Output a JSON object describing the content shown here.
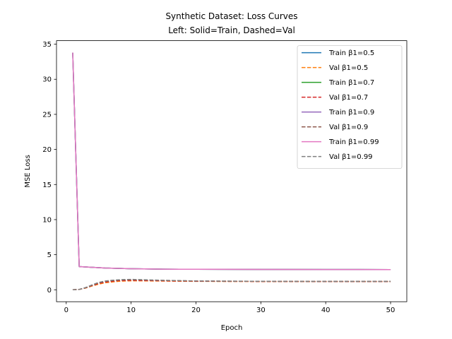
{
  "chart_data": {
    "type": "line",
    "title": "Synthetic Dataset: Loss Curves",
    "subtitle": "Left: Solid=Train, Dashed=Val",
    "xlabel": "Epoch",
    "ylabel": "MSE Loss",
    "xlim": [
      -1.5,
      52.5
    ],
    "ylim": [
      -1.7,
      35.5
    ],
    "xticks": [
      0,
      10,
      20,
      30,
      40,
      50
    ],
    "yticks": [
      0,
      5,
      10,
      15,
      20,
      25,
      30,
      35
    ],
    "grid": false,
    "legend_position": "top-right",
    "series": [
      {
        "name": "Train β1=0.5",
        "color": "#1f77b4",
        "style": "solid",
        "x": [
          1,
          2,
          3,
          4,
          5,
          6,
          7,
          8,
          9,
          10,
          12,
          15,
          20,
          30,
          40,
          50
        ],
        "y": [
          33.8,
          3.3,
          3.25,
          3.2,
          3.15,
          3.1,
          3.08,
          3.05,
          3.03,
          3.0,
          2.97,
          2.94,
          2.92,
          2.9,
          2.89,
          2.88
        ]
      },
      {
        "name": "Val β1=0.5",
        "color": "#ff7f0e",
        "style": "dashed",
        "x": [
          1,
          2,
          3,
          4,
          5,
          6,
          7,
          8,
          9,
          10,
          12,
          15,
          20,
          30,
          40,
          50
        ],
        "y": [
          0.0,
          0.05,
          0.25,
          0.55,
          0.8,
          1.0,
          1.1,
          1.2,
          1.25,
          1.28,
          1.27,
          1.24,
          1.2,
          1.18,
          1.18,
          1.18
        ]
      },
      {
        "name": "Train β1=0.7",
        "color": "#2ca02c",
        "style": "solid",
        "x": [
          1,
          2,
          3,
          4,
          5,
          6,
          7,
          8,
          9,
          10,
          12,
          15,
          20,
          30,
          40,
          50
        ],
        "y": [
          33.8,
          3.3,
          3.25,
          3.2,
          3.15,
          3.1,
          3.08,
          3.05,
          3.03,
          3.0,
          2.97,
          2.94,
          2.92,
          2.9,
          2.89,
          2.88
        ]
      },
      {
        "name": "Val β1=0.7",
        "color": "#d62728",
        "style": "dashed",
        "x": [
          1,
          2,
          3,
          4,
          5,
          6,
          7,
          8,
          9,
          10,
          12,
          15,
          20,
          30,
          40,
          50
        ],
        "y": [
          0.0,
          0.05,
          0.28,
          0.6,
          0.9,
          1.1,
          1.2,
          1.3,
          1.33,
          1.35,
          1.32,
          1.28,
          1.22,
          1.19,
          1.18,
          1.18
        ]
      },
      {
        "name": "Train β1=0.9",
        "color": "#9467bd",
        "style": "solid",
        "x": [
          1,
          2,
          3,
          4,
          5,
          6,
          7,
          8,
          9,
          10,
          12,
          15,
          20,
          30,
          40,
          50
        ],
        "y": [
          33.8,
          3.3,
          3.25,
          3.2,
          3.15,
          3.1,
          3.08,
          3.05,
          3.03,
          3.0,
          2.97,
          2.94,
          2.92,
          2.9,
          2.89,
          2.88
        ]
      },
      {
        "name": "Val β1=0.9",
        "color": "#8c564b",
        "style": "dashed",
        "x": [
          1,
          2,
          3,
          4,
          5,
          6,
          7,
          8,
          9,
          10,
          12,
          15,
          20,
          30,
          40,
          50
        ],
        "y": [
          0.0,
          0.05,
          0.3,
          0.65,
          1.0,
          1.2,
          1.3,
          1.38,
          1.42,
          1.45,
          1.4,
          1.33,
          1.25,
          1.2,
          1.19,
          1.19
        ]
      },
      {
        "name": "Train β1=0.99",
        "color": "#e377c2",
        "style": "solid",
        "x": [
          1,
          2,
          3,
          4,
          5,
          6,
          7,
          8,
          9,
          10,
          12,
          15,
          20,
          30,
          40,
          50
        ],
        "y": [
          33.8,
          3.3,
          3.25,
          3.2,
          3.15,
          3.1,
          3.08,
          3.05,
          3.03,
          3.0,
          2.97,
          2.94,
          2.92,
          2.9,
          2.89,
          2.88
        ]
      },
      {
        "name": "Val β1=0.99",
        "color": "#7f7f7f",
        "style": "dashed",
        "x": [
          1,
          2,
          3,
          4,
          5,
          6,
          7,
          8,
          9,
          10,
          12,
          15,
          20,
          30,
          40,
          50
        ],
        "y": [
          0.0,
          0.05,
          0.32,
          0.7,
          1.05,
          1.25,
          1.35,
          1.42,
          1.46,
          1.48,
          1.43,
          1.35,
          1.26,
          1.21,
          1.2,
          1.2
        ]
      }
    ]
  }
}
